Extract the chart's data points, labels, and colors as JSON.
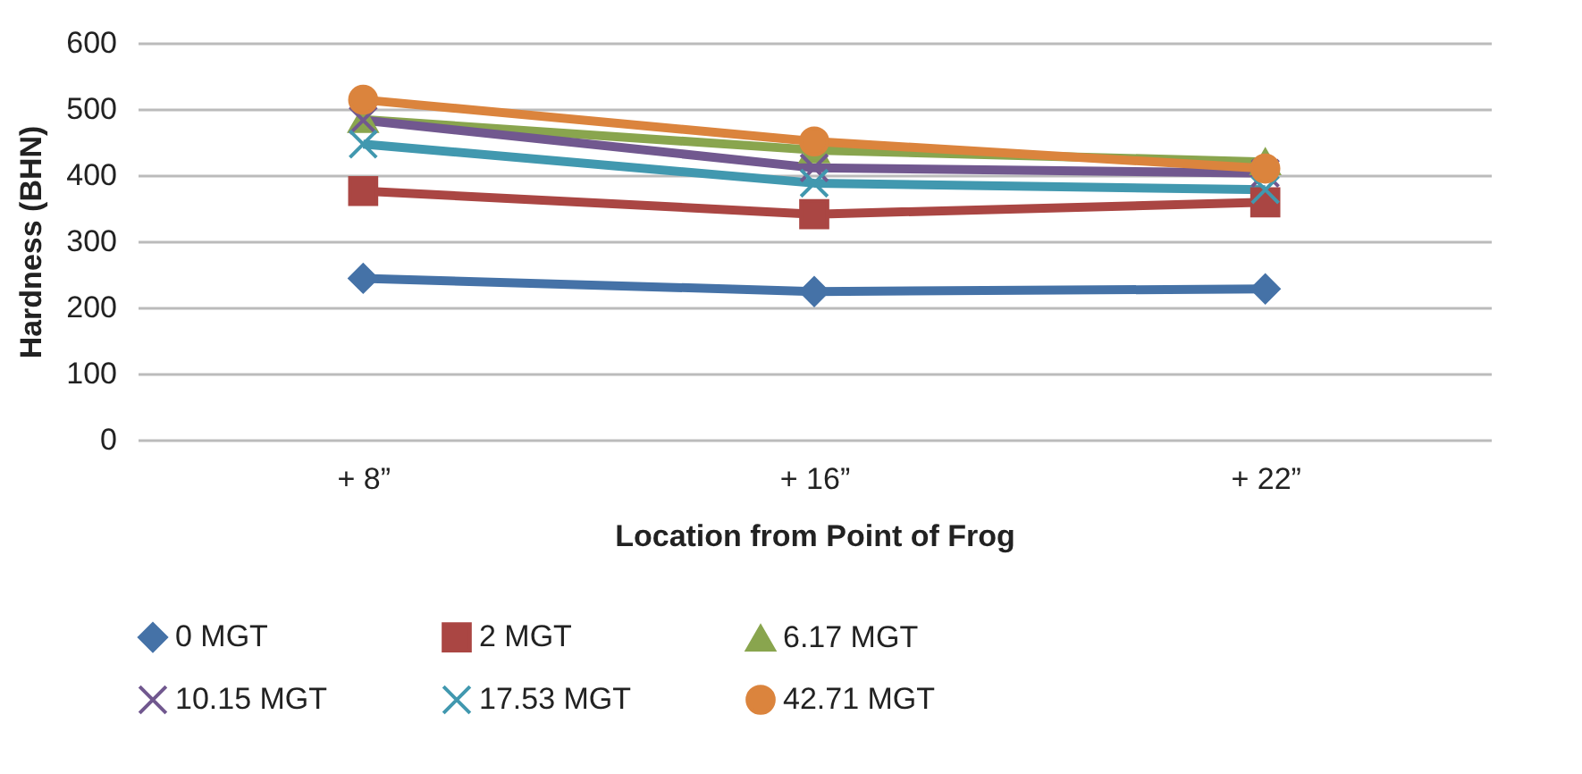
{
  "chart_data": {
    "type": "line",
    "xlabel": "Location from Point of Frog",
    "ylabel": "Hardness (BHN)",
    "categories": [
      "+ 8”",
      "+ 16”",
      "+ 22”"
    ],
    "ylim": [
      0,
      600
    ],
    "yticks": [
      0,
      100,
      200,
      300,
      400,
      500,
      600
    ],
    "grid": "y",
    "legend": "bottom",
    "series": [
      {
        "name": "0 MGT",
        "color": "#4572a7",
        "marker": "diamond",
        "values": [
          244,
          224,
          228
        ]
      },
      {
        "name": "2 MGT",
        "color": "#aa4643",
        "marker": "square",
        "values": [
          376,
          341,
          359
        ]
      },
      {
        "name": "6.17 MGT",
        "color": "#89a54e",
        "marker": "triangle",
        "values": [
          484,
          438,
          420
        ]
      },
      {
        "name": "10.15 MGT",
        "color": "#71588f",
        "marker": "cross",
        "values": [
          483,
          411,
          403
        ]
      },
      {
        "name": "17.53 MGT",
        "color": "#4198af",
        "marker": "cross",
        "values": [
          447,
          388,
          378
        ]
      },
      {
        "name": "42.71 MGT",
        "color": "#db843d",
        "marker": "circle",
        "values": [
          514,
          451,
          410
        ]
      }
    ]
  }
}
